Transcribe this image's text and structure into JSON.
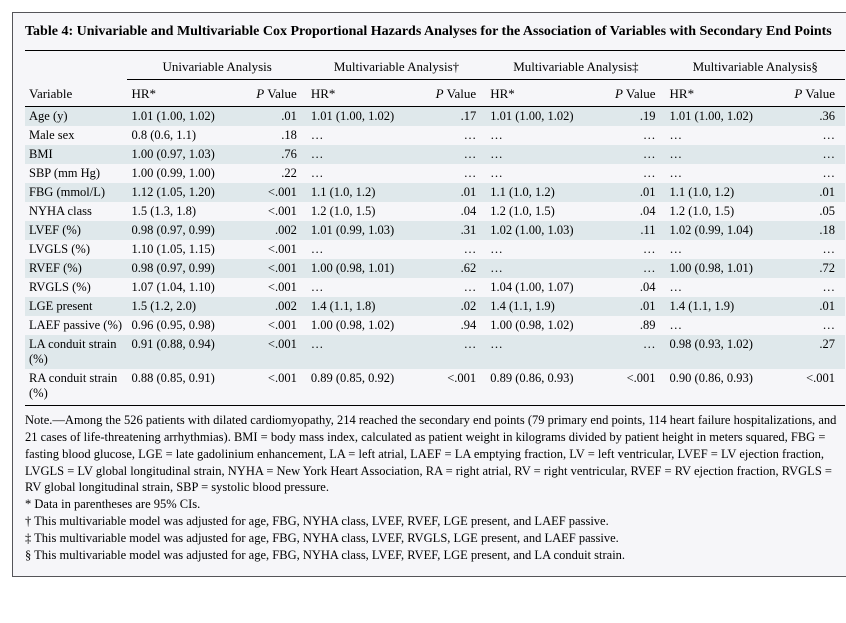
{
  "title": "Table 4: Univariable and Multivariable Cox Proportional Hazards Analyses for the Association of Variables with Secondary End Points",
  "group_headers": [
    "Univariable Analysis",
    "Multivariable Analysis†",
    "Multivariable Analysis‡",
    "Multivariable Analysis§"
  ],
  "col_headers": {
    "variable": "Variable",
    "hr": "HR*",
    "p": "P Value"
  },
  "pvalue_prefix": "P",
  "rows": [
    {
      "v": "Age (y)",
      "u_hr": "1.01 (1.00, 1.02)",
      "u_p": ".01",
      "m1_hr": "1.01 (1.00, 1.02)",
      "m1_p": ".17",
      "m2_hr": "1.01 (1.00, 1.02)",
      "m2_p": ".19",
      "m3_hr": "1.01 (1.00, 1.02)",
      "m3_p": ".36"
    },
    {
      "v": "Male sex",
      "u_hr": "0.8 (0.6, 1.1)",
      "u_p": ".18",
      "m1_hr": "…",
      "m1_p": "…",
      "m2_hr": "…",
      "m2_p": "…",
      "m3_hr": "…",
      "m3_p": "…"
    },
    {
      "v": "BMI",
      "u_hr": "1.00 (0.97, 1.03)",
      "u_p": ".76",
      "m1_hr": "…",
      "m1_p": "…",
      "m2_hr": "…",
      "m2_p": "…",
      "m3_hr": "…",
      "m3_p": "…"
    },
    {
      "v": "SBP (mm Hg)",
      "u_hr": "1.00 (0.99, 1.00)",
      "u_p": ".22",
      "m1_hr": "…",
      "m1_p": "…",
      "m2_hr": "…",
      "m2_p": "…",
      "m3_hr": "…",
      "m3_p": "…"
    },
    {
      "v": "FBG (mmol/L)",
      "u_hr": "1.12 (1.05, 1.20)",
      "u_p": "<.001",
      "m1_hr": "1.1 (1.0, 1.2)",
      "m1_p": ".01",
      "m2_hr": "1.1 (1.0, 1.2)",
      "m2_p": ".01",
      "m3_hr": "1.1 (1.0, 1.2)",
      "m3_p": ".01"
    },
    {
      "v": "NYHA class",
      "u_hr": "1.5 (1.3, 1.8)",
      "u_p": "<.001",
      "m1_hr": "1.2 (1.0, 1.5)",
      "m1_p": ".04",
      "m2_hr": "1.2 (1.0, 1.5)",
      "m2_p": ".04",
      "m3_hr": "1.2 (1.0, 1.5)",
      "m3_p": ".05"
    },
    {
      "v": "LVEF (%)",
      "u_hr": "0.98 (0.97, 0.99)",
      "u_p": ".002",
      "m1_hr": "1.01 (0.99, 1.03)",
      "m1_p": ".31",
      "m2_hr": "1.02 (1.00, 1.03)",
      "m2_p": ".11",
      "m3_hr": "1.02 (0.99, 1.04)",
      "m3_p": ".18"
    },
    {
      "v": "LVGLS (%)",
      "u_hr": "1.10 (1.05, 1.15)",
      "u_p": "<.001",
      "m1_hr": "…",
      "m1_p": "…",
      "m2_hr": "…",
      "m2_p": "…",
      "m3_hr": "…",
      "m3_p": "…"
    },
    {
      "v": "RVEF (%)",
      "u_hr": "0.98 (0.97, 0.99)",
      "u_p": "<.001",
      "m1_hr": "1.00 (0.98, 1.01)",
      "m1_p": ".62",
      "m2_hr": "…",
      "m2_p": "…",
      "m3_hr": "1.00 (0.98, 1.01)",
      "m3_p": ".72"
    },
    {
      "v": "RVGLS (%)",
      "u_hr": "1.07 (1.04, 1.10)",
      "u_p": "<.001",
      "m1_hr": "…",
      "m1_p": "…",
      "m2_hr": "1.04 (1.00, 1.07)",
      "m2_p": ".04",
      "m3_hr": "…",
      "m3_p": "…"
    },
    {
      "v": "LGE present",
      "u_hr": "1.5 (1.2, 2.0)",
      "u_p": ".002",
      "m1_hr": "1.4 (1.1, 1.8)",
      "m1_p": ".02",
      "m2_hr": "1.4 (1.1, 1.9)",
      "m2_p": ".01",
      "m3_hr": "1.4 (1.1, 1.9)",
      "m3_p": ".01"
    },
    {
      "v": "LAEF passive (%)",
      "u_hr": "0.96 (0.95, 0.98)",
      "u_p": "<.001",
      "m1_hr": "1.00 (0.98, 1.02)",
      "m1_p": ".94",
      "m2_hr": "1.00 (0.98, 1.02)",
      "m2_p": ".89",
      "m3_hr": "…",
      "m3_p": "…"
    },
    {
      "v": "LA conduit strain (%)",
      "u_hr": "0.91 (0.88, 0.94)",
      "u_p": "<.001",
      "m1_hr": "…",
      "m1_p": "…",
      "m2_hr": "…",
      "m2_p": "…",
      "m3_hr": "0.98 (0.93, 1.02)",
      "m3_p": ".27"
    },
    {
      "v": "RA conduit strain (%)",
      "u_hr": "0.88 (0.85, 0.91)",
      "u_p": "<.001",
      "m1_hr": "0.89 (0.85, 0.92)",
      "m1_p": "<.001",
      "m2_hr": "0.89 (0.86, 0.93)",
      "m2_p": "<.001",
      "m3_hr": "0.90 (0.86, 0.93)",
      "m3_p": "<.001"
    }
  ],
  "alt_indices": [
    0,
    2,
    4,
    6,
    8,
    10,
    12
  ],
  "notes": {
    "main": "Note.—Among the 526 patients with dilated cardiomyopathy, 214 reached the secondary end points (79 primary end points, 114 heart failure hospitalizations, and 21 cases of life-threatening arrhythmias). BMI = body mass index, calculated as patient weight in kilograms divided by patient height in meters squared, FBG = fasting blood glucose, LGE = late gadolinium enhancement, LA = left atrial, LAEF = LA emptying fraction, LV = left ventricular, LVEF = LV ejection fraction, LVGLS = LV global longitudinal strain, NYHA = New York Heart Association, RA = right atrial, RV = right ventricular, RVEF = RV ejection fraction, RVGLS = RV global longitudinal strain, SBP = systolic blood pressure.",
    "star": "* Data in parentheses are 95% CIs.",
    "dagger": "† This multivariable model was adjusted for age, FBG, NYHA class, LVEF, RVEF, LGE present, and LAEF passive.",
    "ddagger": "‡ This multivariable model was adjusted for age, FBG, NYHA class, LVEF, RVGLS, LGE present, and LAEF passive.",
    "section": "§ This multivariable model was adjusted for age, FBG, NYHA class, LVEF, RVEF, LGE present, and LA conduit strain."
  },
  "colors": {
    "panel_bg": "#f6f6f9",
    "border": "#555559",
    "alt_row": "#dfe8eb",
    "rule": "#000000"
  }
}
